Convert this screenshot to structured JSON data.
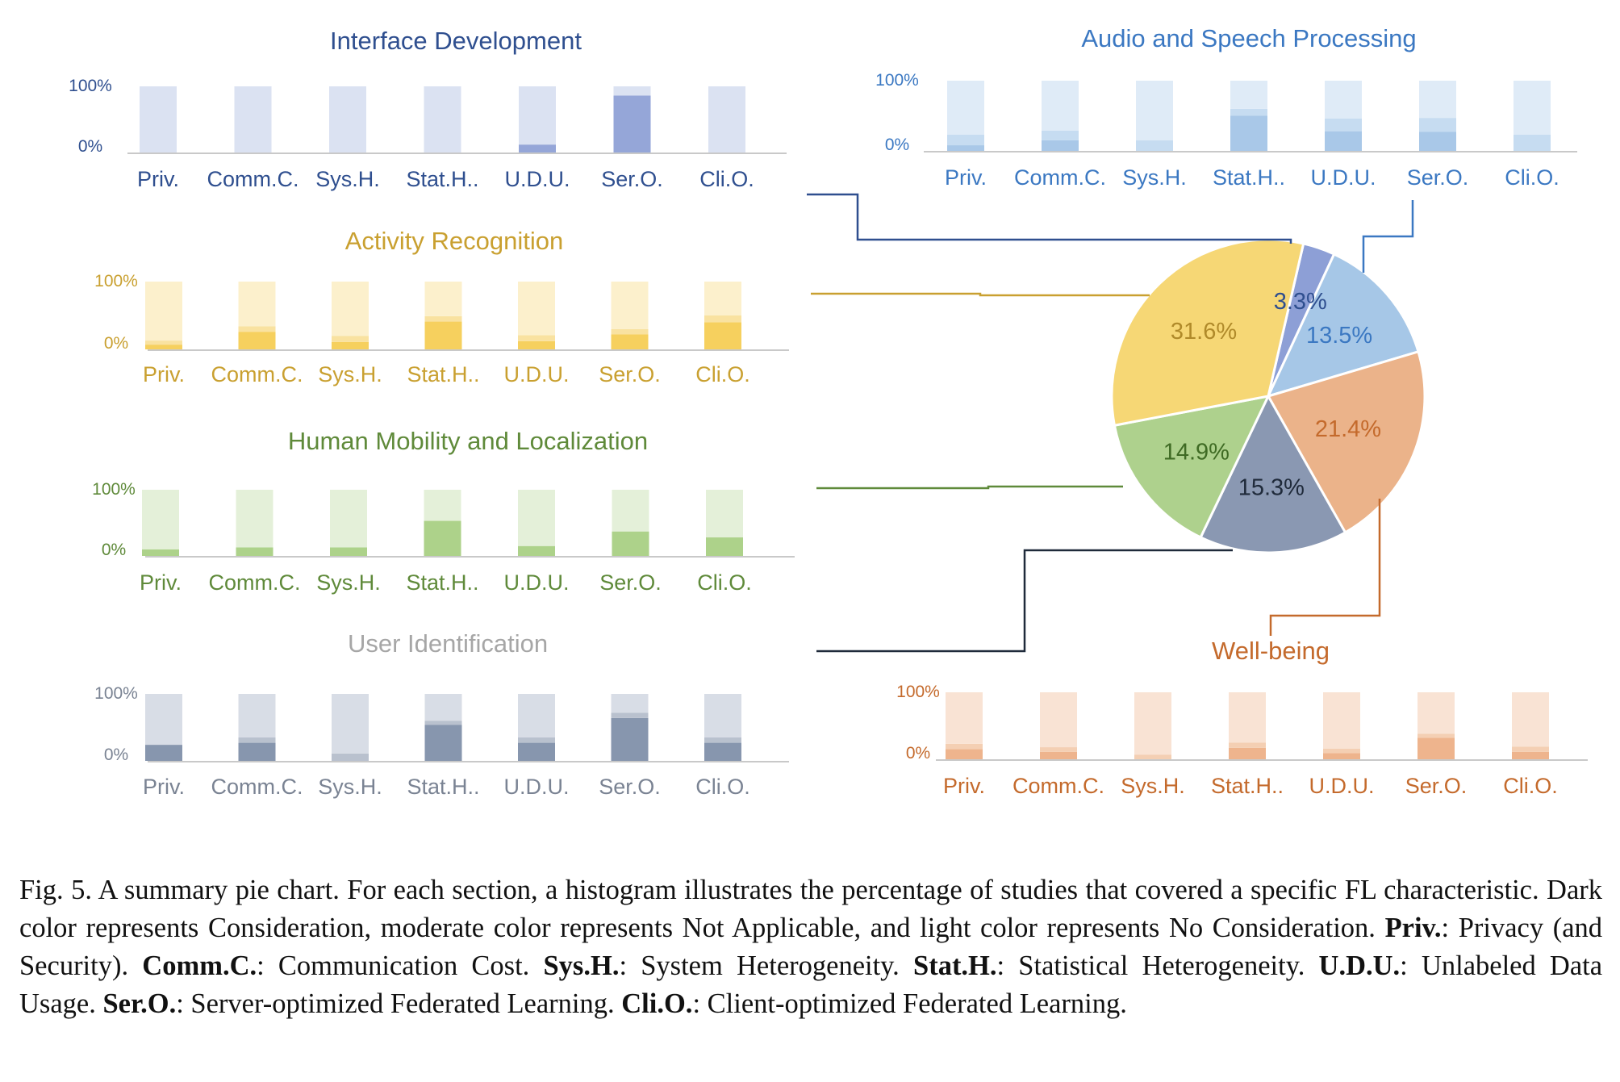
{
  "chart_data": [
    {
      "type": "bar",
      "title": "Interface Development",
      "color_theme": "blue-purple",
      "colors": {
        "title": "#2f4f8f",
        "axis": "#2f4f8f",
        "dark": "#95a6d8",
        "moderate": "#c5cfeb",
        "light": "#dbe2f2"
      },
      "categories": [
        "Priv.",
        "Comm.C.",
        "Sys.H.",
        "Stat.H..",
        "U.D.U.",
        "Ser.O.",
        "Cli.O."
      ],
      "yticks": [
        "100%",
        "0%"
      ],
      "ylim": [
        0,
        100
      ],
      "stacked": true,
      "series": [
        {
          "name": "Consideration",
          "values": [
            0,
            0,
            0,
            0,
            12,
            86,
            0
          ]
        },
        {
          "name": "Not Applicable",
          "values": [
            0,
            0,
            0,
            0,
            0,
            0,
            0
          ]
        },
        {
          "name": "No Consideration",
          "values": [
            100,
            100,
            100,
            100,
            88,
            14,
            100
          ]
        }
      ]
    },
    {
      "type": "bar",
      "title": "Audio and Speech Processing",
      "color_theme": "light-blue",
      "colors": {
        "title": "#3b78c2",
        "axis": "#3b78c2",
        "dark": "#a9c8e8",
        "moderate": "#c6dcf1",
        "light": "#dfebf7"
      },
      "categories": [
        "Priv.",
        "Comm.C.",
        "Sys.H.",
        "Stat.H..",
        "U.D.U.",
        "Ser.O.",
        "Cli.O."
      ],
      "yticks": [
        "100%",
        "0%"
      ],
      "ylim": [
        0,
        100
      ],
      "stacked": true,
      "series": [
        {
          "name": "Consideration",
          "values": [
            8,
            15,
            0,
            50,
            28,
            27,
            0
          ]
        },
        {
          "name": "Not Applicable",
          "values": [
            15,
            14,
            15,
            10,
            18,
            20,
            23
          ]
        },
        {
          "name": "No Consideration",
          "values": [
            77,
            71,
            85,
            40,
            54,
            53,
            77
          ]
        }
      ]
    },
    {
      "type": "bar",
      "title": "Activity Recognition",
      "color_theme": "yellow",
      "colors": {
        "title": "#c9a030",
        "axis": "#c9a030",
        "dark": "#f6d05e",
        "moderate": "#f9e2a0",
        "light": "#fcf0cc"
      },
      "categories": [
        "Priv.",
        "Comm.C.",
        "Sys.H.",
        "Stat.H..",
        "U.D.U.",
        "Ser.O.",
        "Cli.O."
      ],
      "yticks": [
        "100%",
        "0%"
      ],
      "ylim": [
        0,
        100
      ],
      "stacked": true,
      "series": [
        {
          "name": "Consideration",
          "values": [
            7,
            26,
            11,
            41,
            12,
            22,
            40
          ]
        },
        {
          "name": "Not Applicable",
          "values": [
            6,
            8,
            9,
            8,
            9,
            8,
            10
          ]
        },
        {
          "name": "No Consideration",
          "values": [
            87,
            66,
            80,
            51,
            79,
            70,
            50
          ]
        }
      ]
    },
    {
      "type": "bar",
      "title": "Human Mobility and Localization",
      "color_theme": "green",
      "colors": {
        "title": "#5f8a3a",
        "axis": "#5f8a3a",
        "dark": "#add28a",
        "moderate": "#cfe5bb",
        "light": "#e4f0d9"
      },
      "categories": [
        "Priv.",
        "Comm.C.",
        "Sys.H.",
        "Stat.H..",
        "U.D.U.",
        "Ser.O.",
        "Cli.O."
      ],
      "yticks": [
        "100%",
        "0%"
      ],
      "ylim": [
        0,
        100
      ],
      "stacked": true,
      "series": [
        {
          "name": "Consideration",
          "values": [
            10,
            13,
            13,
            53,
            15,
            37,
            28
          ]
        },
        {
          "name": "Not Applicable",
          "values": [
            0,
            0,
            0,
            0,
            0,
            0,
            0
          ]
        },
        {
          "name": "No Consideration",
          "values": [
            90,
            87,
            87,
            47,
            85,
            63,
            72
          ]
        }
      ]
    },
    {
      "type": "bar",
      "title": "User Identification",
      "color_theme": "slate-gray",
      "colors": {
        "title": "#a6a6a6",
        "axis": "#7a8393",
        "dark": "#8796ae",
        "moderate": "#b9c1ce",
        "light": "#d8dde6"
      },
      "categories": [
        "Priv.",
        "Comm.C.",
        "Sys.H.",
        "Stat.H..",
        "U.D.U.",
        "Ser.O.",
        "Cli.O."
      ],
      "yticks": [
        "100%",
        "0%"
      ],
      "ylim": [
        0,
        100
      ],
      "stacked": true,
      "series": [
        {
          "name": "Consideration",
          "values": [
            24,
            27,
            0,
            54,
            27,
            64,
            27
          ]
        },
        {
          "name": "Not Applicable",
          "values": [
            0,
            8,
            11,
            6,
            8,
            8,
            8
          ]
        },
        {
          "name": "No Consideration",
          "values": [
            76,
            65,
            89,
            40,
            65,
            28,
            65
          ]
        }
      ]
    },
    {
      "type": "bar",
      "title": "Well-being",
      "color_theme": "orange",
      "colors": {
        "title": "#c46a2c",
        "axis": "#c46a2c",
        "dark": "#eeb48d",
        "moderate": "#f4cfb3",
        "light": "#f9e3d4"
      },
      "categories": [
        "Priv.",
        "Comm.C.",
        "Sys.H.",
        "Stat.H..",
        "U.D.U.",
        "Ser.O.",
        "Cli.O."
      ],
      "yticks": [
        "100%",
        "0%"
      ],
      "ylim": [
        0,
        100
      ],
      "stacked": true,
      "series": [
        {
          "name": "Consideration",
          "values": [
            15,
            11,
            0,
            17,
            9,
            32,
            11
          ]
        },
        {
          "name": "Not Applicable",
          "values": [
            8,
            7,
            7,
            8,
            7,
            6,
            8
          ]
        },
        {
          "name": "No Consideration",
          "values": [
            77,
            82,
            93,
            75,
            84,
            62,
            81
          ]
        }
      ]
    },
    {
      "type": "pie",
      "slices": [
        {
          "label": "3.3%",
          "value": 3.3,
          "section": "Interface Development",
          "color": "#8d9fd6",
          "label_color": "#2f4f8f"
        },
        {
          "label": "13.5%",
          "value": 13.5,
          "section": "Audio and Speech Processing",
          "color": "#a6c7e7",
          "label_color": "#3b78c2"
        },
        {
          "label": "21.4%",
          "value": 21.4,
          "section": "Well-being",
          "color": "#ebb38a",
          "label_color": "#c46a2c"
        },
        {
          "label": "15.3%",
          "value": 15.3,
          "section": "User Identification",
          "color": "#8a98b2",
          "label_color": "#1f2a3a"
        },
        {
          "label": "14.9%",
          "value": 14.9,
          "section": "Human Mobility and Localization",
          "color": "#aed18d",
          "label_color": "#3f6b24"
        },
        {
          "label": "31.6%",
          "value": 31.6,
          "section": "Activity Recognition",
          "color": "#f6d775",
          "label_color": "#b08a2a"
        }
      ]
    }
  ],
  "caption": {
    "prefix": "Fig. 5.  A summary pie chart. For each section, a histogram illustrates the percentage of studies that covered a specific FL characteristic. Dark color represents Consideration, moderate color represents Not Applicable, and light color represents No Consideration.",
    "items": [
      {
        "abbr": "Priv.",
        "sep": ": ",
        "text": "Privacy (and Security)."
      },
      {
        "abbr": "Comm.C.",
        "sep": ": ",
        "text": "Communication Cost."
      },
      {
        "abbr": "Sys.H.",
        "sep": ": ",
        "text": "System Heterogeneity."
      },
      {
        "abbr": "Stat.H.",
        "sep": ": ",
        "text": "Statistical Heterogeneity."
      },
      {
        "abbr": "U.D.U.",
        "sep": ": ",
        "text": "Unlabeled Data Usage."
      },
      {
        "abbr": "Ser.O.",
        "sep": ": ",
        "text": "Server-optimized Federated Learning."
      },
      {
        "abbr": "Cli.O.",
        "sep": ": ",
        "text": "Client-optimized Federated Learning."
      }
    ]
  }
}
